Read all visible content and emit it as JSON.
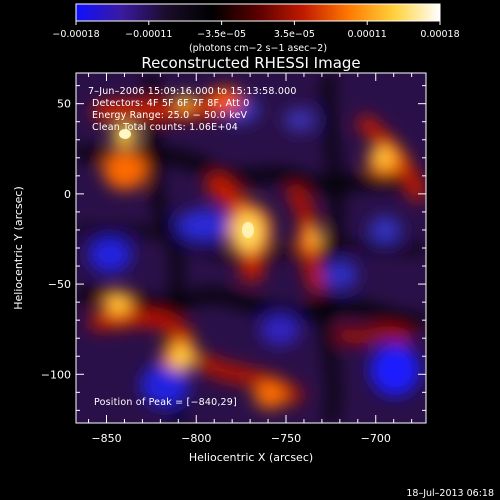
{
  "colorbar": {
    "ticks": [
      "−0.00018",
      "−0.00011",
      "−3.5e−05",
      "3.5e−05",
      "0.00011",
      "0.00018"
    ],
    "unit_text": "(photons cm−2 s−1 asec−2)",
    "stops": [
      "#1010ff",
      "#3a1aa0",
      "#1a0c2a",
      "#000000",
      "#5a0000",
      "#c21a00",
      "#ff7a00",
      "#ffd23c",
      "#ffffff"
    ]
  },
  "title": "Reconstructed RHESSI Image",
  "annotations": {
    "time_range": "7–Jun–2006 15:09:16.000 to 15:13:58.000",
    "detectors": "Detectors: 4F 5F 6F 7F 8F, Att 0",
    "energy": "Energy Range: 25.0 − 50.0 keV",
    "method": "Clean   Total counts: 1.06E+04",
    "peak": "Position of Peak = [−840,29]"
  },
  "axes": {
    "x_label": "Heliocentric X (arcsec)",
    "y_label": "Heliocentric Y (arcsec)",
    "x_range": [
      -867,
      -672
    ],
    "y_range": [
      -127,
      67
    ],
    "x_ticks": [
      {
        "v": -850,
        "label": "−850"
      },
      {
        "v": -800,
        "label": "−800"
      },
      {
        "v": -750,
        "label": "−750"
      },
      {
        "v": -700,
        "label": "−700"
      }
    ],
    "y_ticks": [
      {
        "v": 50,
        "label": "50"
      },
      {
        "v": 0,
        "label": "0"
      },
      {
        "v": -50,
        "label": "−50"
      },
      {
        "v": -100,
        "label": "−100"
      }
    ]
  },
  "footer_date": "18–Jul–2013 06:18"
}
